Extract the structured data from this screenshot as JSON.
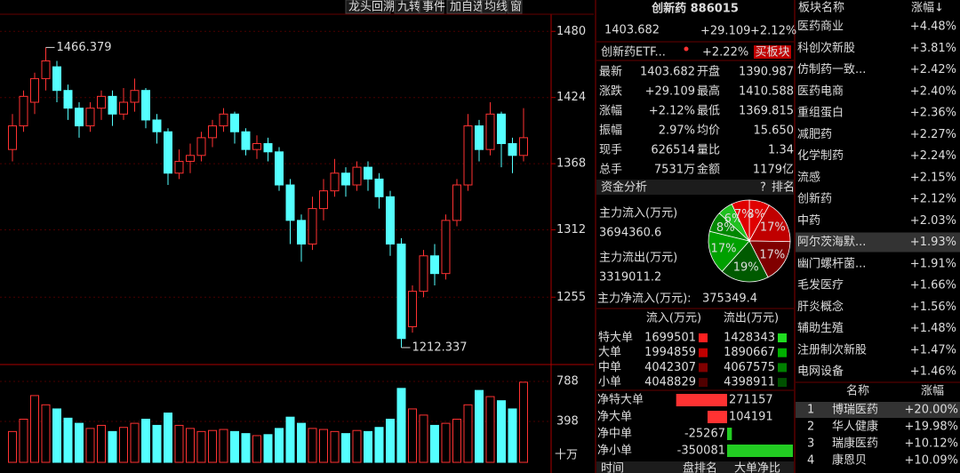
{
  "toolbar": [
    "龙头回溯",
    "九转",
    "事件",
    "加自选",
    "均线",
    "窗"
  ],
  "chart_data": [
    {
      "type": "candlestick",
      "ylim": [
        1198,
        1493
      ],
      "yticks": [
        1480,
        1424,
        1368,
        1312,
        1255
      ],
      "up_color": "#ff3232",
      "down_color": "#54ffff",
      "open": [
        1380,
        1400,
        1420,
        1440,
        1450,
        1430,
        1415,
        1400,
        1415,
        1425,
        1410,
        1420,
        1430,
        1405,
        1395,
        1360,
        1370,
        1375,
        1390,
        1400,
        1410,
        1395,
        1380,
        1385,
        1378,
        1350,
        1320,
        1300,
        1330,
        1345,
        1360,
        1350,
        1365,
        1355,
        1340,
        1300,
        1230,
        1260,
        1290,
        1275,
        1320,
        1350,
        1400,
        1380,
        1410,
        1385,
        1375
      ],
      "close": [
        1400,
        1425,
        1440,
        1455,
        1430,
        1415,
        1400,
        1415,
        1425,
        1410,
        1420,
        1430,
        1405,
        1395,
        1360,
        1370,
        1375,
        1390,
        1400,
        1410,
        1395,
        1380,
        1385,
        1378,
        1350,
        1320,
        1300,
        1330,
        1345,
        1360,
        1350,
        1365,
        1355,
        1340,
        1300,
        1220,
        1260,
        1290,
        1275,
        1320,
        1350,
        1400,
        1380,
        1410,
        1385,
        1375,
        1390
      ],
      "high": [
        1410,
        1430,
        1445,
        1466.379,
        1455,
        1435,
        1420,
        1420,
        1430,
        1430,
        1432,
        1440,
        1432,
        1410,
        1398,
        1380,
        1385,
        1395,
        1405,
        1415,
        1412,
        1398,
        1392,
        1390,
        1382,
        1355,
        1325,
        1340,
        1355,
        1372,
        1365,
        1370,
        1370,
        1360,
        1345,
        1305,
        1265,
        1295,
        1300,
        1325,
        1355,
        1410,
        1405,
        1420,
        1412,
        1390,
        1415
      ],
      "low": [
        1370,
        1395,
        1410,
        1430,
        1420,
        1405,
        1390,
        1395,
        1405,
        1400,
        1405,
        1412,
        1398,
        1385,
        1350,
        1355,
        1360,
        1370,
        1382,
        1395,
        1385,
        1375,
        1372,
        1370,
        1345,
        1300,
        1285,
        1295,
        1320,
        1340,
        1340,
        1345,
        1345,
        1330,
        1290,
        1212.337,
        1225,
        1255,
        1265,
        1270,
        1315,
        1345,
        1370,
        1375,
        1365,
        1360,
        1370
      ]
    },
    {
      "type": "bar",
      "ylim": [
        0,
        935
      ],
      "yticks": [
        788,
        398
      ],
      "unit_label": "十万",
      "values": [
        300,
        420,
        650,
        560,
        520,
        430,
        380,
        330,
        360,
        300,
        340,
        380,
        420,
        360,
        480,
        360,
        330,
        300,
        310,
        320,
        300,
        280,
        260,
        270,
        330,
        440,
        380,
        330,
        320,
        300,
        280,
        310,
        300,
        340,
        420,
        720,
        520,
        460,
        360,
        380,
        420,
        560,
        700,
        640,
        600,
        520,
        780
      ]
    },
    {
      "type": "pie",
      "values": [
        8,
        17,
        17,
        19,
        17,
        8,
        6,
        7
      ],
      "value_labels": [
        "8%",
        "17%",
        "17%",
        "19%",
        "17%",
        "8%",
        "6%",
        "7%"
      ],
      "colors": [
        "#e00000",
        "#c00000",
        "#800000",
        "#005a00",
        "#00a000",
        "#008800",
        "#20c020",
        "#e00000"
      ]
    },
    {
      "type": "bar",
      "orientation": "horizontal",
      "categories": [
        "净特大单",
        "净大单",
        "净中单",
        "净小单"
      ],
      "values": [
        271157,
        104191,
        -25267,
        -350081
      ],
      "colors": [
        "#ff3232",
        "#22cc22"
      ]
    }
  ],
  "quote": {
    "title": "创新药 886015",
    "price": "1403.682",
    "change": "+29.109",
    "pct": "+2.12%",
    "etf": "创新药ETF...",
    "etf_pct": "+2.22%",
    "button": "买板块"
  },
  "stats": {
    "rows": [
      [
        "最新",
        "1403.682",
        "开盘",
        "1390.987"
      ],
      [
        "涨跌",
        "+29.109",
        "最高",
        "1410.588"
      ],
      [
        "涨幅",
        "+2.12%",
        "最低",
        "1369.815"
      ],
      [
        "振幅",
        "2.97%",
        "均价",
        "15.650"
      ],
      [
        "现手",
        "626514",
        "量比",
        "1.34"
      ],
      [
        "总手",
        "7531万",
        "金额",
        "1179亿"
      ]
    ]
  },
  "fund": {
    "title": "资金分析",
    "help": "?",
    "rank": "排名",
    "in_label": "主力流入(万元)",
    "in_value": "3694360.6",
    "out_label": "主力流出(万元)",
    "out_value": "3319011.2",
    "net_label": "主力净流入(万元):",
    "net_value": "375349.4"
  },
  "flow": {
    "header": [
      "流入(万元)",
      "流出(万元)"
    ],
    "rows": [
      [
        "特大单",
        "1699501",
        "1428343"
      ],
      [
        "大单",
        "1994859",
        "1890667"
      ],
      [
        "中单",
        "4042307",
        "4067575"
      ],
      [
        "小单",
        "4048829",
        "4398911"
      ]
    ]
  },
  "bottom": [
    "时间",
    "盘排名",
    "大单净比"
  ],
  "sectors": {
    "header": [
      "板块名称",
      "涨幅↓"
    ],
    "rows": [
      [
        "医药商业",
        "+4.48%"
      ],
      [
        "科创次新股",
        "+3.81%"
      ],
      [
        "仿制药一致...",
        "+2.42%"
      ],
      [
        "医药电商",
        "+2.40%"
      ],
      [
        "重组蛋白",
        "+2.36%"
      ],
      [
        "减肥药",
        "+2.27%"
      ],
      [
        "化学制药",
        "+2.24%"
      ],
      [
        "流感",
        "+2.15%"
      ],
      [
        "创新药",
        "+2.12%"
      ],
      [
        "中药",
        "+2.03%"
      ],
      [
        "阿尔茨海默...",
        "+1.93%"
      ],
      [
        "幽门螺杆菌...",
        "+1.91%"
      ],
      [
        "毛发医疗",
        "+1.66%"
      ],
      [
        "肝炎概念",
        "+1.56%"
      ],
      [
        "辅助生殖",
        "+1.48%"
      ],
      [
        "注册制次新股",
        "+1.47%"
      ],
      [
        "电网设备",
        "+1.46%"
      ]
    ]
  },
  "stocks": {
    "header": [
      "名称",
      "涨幅"
    ],
    "rows": [
      [
        "1",
        "博瑞医药",
        "+20.00%"
      ],
      [
        "2",
        "华人健康",
        "+19.98%"
      ],
      [
        "3",
        "瑞康医药",
        "+10.12%"
      ],
      [
        "4",
        "康恩贝",
        "+10.09%"
      ]
    ]
  }
}
